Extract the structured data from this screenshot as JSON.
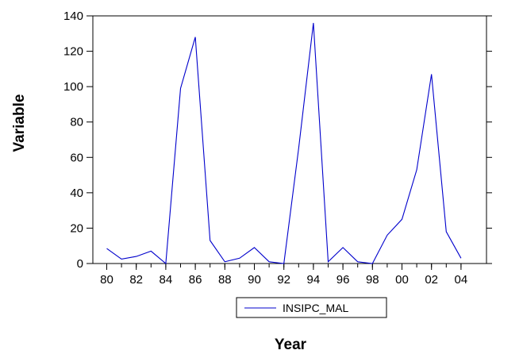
{
  "chart_data": {
    "type": "line",
    "title": "",
    "xlabel": "Year",
    "ylabel": "Variable",
    "x": [
      "80",
      "81",
      "82",
      "83",
      "84",
      "85",
      "86",
      "87",
      "88",
      "89",
      "90",
      "91",
      "92",
      "93",
      "94",
      "95",
      "96",
      "97",
      "98",
      "99",
      "00",
      "01",
      "02",
      "03",
      "04"
    ],
    "x_tick_labels": [
      "80",
      "82",
      "84",
      "86",
      "88",
      "90",
      "92",
      "94",
      "96",
      "98",
      "00",
      "02",
      "04"
    ],
    "ylim": [
      0,
      140
    ],
    "y_ticks": [
      0,
      20,
      40,
      60,
      80,
      100,
      120,
      140
    ],
    "grid": false,
    "legend_position": "bottom-center",
    "series": [
      {
        "name": "INSIPC_MAL",
        "color": "#0000cc",
        "values": [
          8.5,
          2.5,
          4,
          7,
          0,
          99,
          128,
          13,
          1,
          3,
          9,
          1,
          0,
          65,
          136,
          1,
          9,
          1,
          0,
          16,
          25,
          53,
          107,
          18,
          3
        ]
      }
    ]
  }
}
